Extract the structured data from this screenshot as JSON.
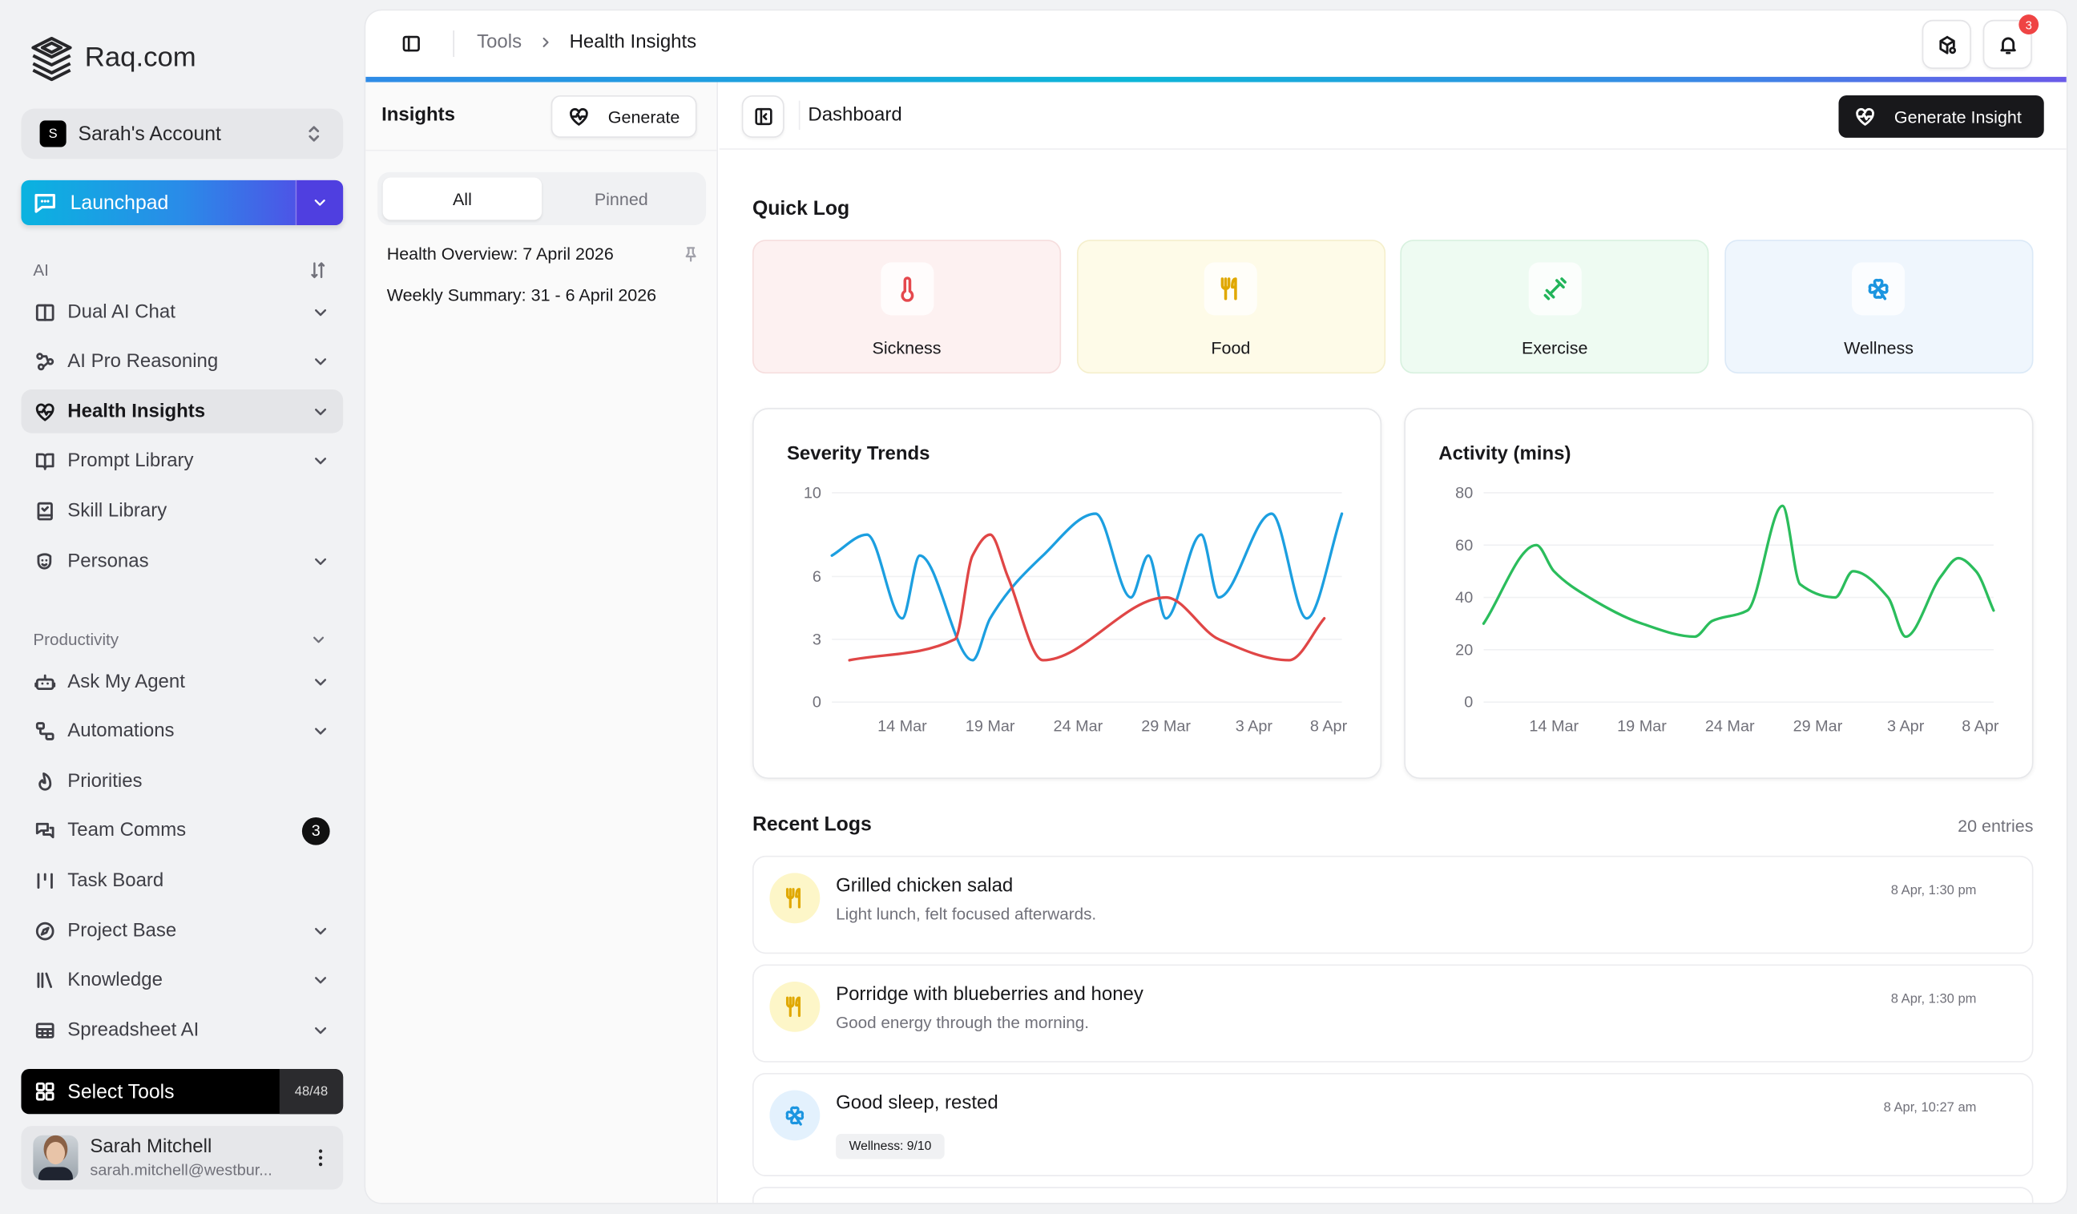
{
  "brand": {
    "name": "Raq.com"
  },
  "account": {
    "initial": "S",
    "name": "Sarah's Account"
  },
  "launchpad": {
    "label": "Launchpad"
  },
  "sidebar": {
    "ai_section": "AI",
    "ai_items": [
      {
        "label": "Dual AI Chat",
        "icon": "columns-icon",
        "expand": true
      },
      {
        "label": "AI Pro Reasoning",
        "icon": "workflow-icon",
        "expand": true
      },
      {
        "label": "Health Insights",
        "icon": "heart-pulse-icon",
        "expand": true,
        "active": true
      },
      {
        "label": "Prompt Library",
        "icon": "book-open-icon",
        "expand": true
      },
      {
        "label": "Skill Library",
        "icon": "book-check-icon",
        "expand": false
      },
      {
        "label": "Personas",
        "icon": "masks-icon",
        "expand": true
      }
    ],
    "productivity_section": "Productivity",
    "productivity_items": [
      {
        "label": "Ask My Agent",
        "icon": "bot-icon",
        "expand": true
      },
      {
        "label": "Automations",
        "icon": "flow-icon",
        "expand": true
      },
      {
        "label": "Priorities",
        "icon": "flame-icon",
        "expand": false
      },
      {
        "label": "Team Comms",
        "icon": "messages-icon",
        "badge": "3"
      },
      {
        "label": "Task Board",
        "icon": "kanban-icon",
        "expand": false
      },
      {
        "label": "Project Base",
        "icon": "compass-icon",
        "expand": true
      },
      {
        "label": "Knowledge",
        "icon": "library-icon",
        "expand": true
      },
      {
        "label": "Spreadsheet AI",
        "icon": "table-icon",
        "expand": true
      }
    ],
    "select_tools": {
      "label": "Select Tools",
      "count": "48/48"
    },
    "user": {
      "name": "Sarah Mitchell",
      "email": "sarah.mitchell@westbur..."
    }
  },
  "breadcrumb": {
    "parent": "Tools",
    "current": "Health Insights"
  },
  "header": {
    "notifications": "3"
  },
  "insights": {
    "title": "Insights",
    "generate_label": "Generate",
    "tabs": [
      "All",
      "Pinned"
    ],
    "items": [
      "Health Overview: 7 April 2026",
      "Weekly Summary: 31 - 6 April 2026"
    ]
  },
  "dashboard": {
    "title": "Dashboard",
    "generate_insight_label": "Generate Insight",
    "quick_log_title": "Quick Log",
    "quick_log": [
      {
        "label": "Sickness",
        "icon": "thermometer-icon",
        "color": "#e5484d",
        "bg": "#fdf1f1",
        "border": "#f6dede"
      },
      {
        "label": "Food",
        "icon": "utensils-icon",
        "color": "#e0a800",
        "bg": "#fefbe8",
        "border": "#f5efcc"
      },
      {
        "label": "Exercise",
        "icon": "dumbbell-icon",
        "color": "#22b45a",
        "bg": "#eefbf2",
        "border": "#d8f1df"
      },
      {
        "label": "Wellness",
        "icon": "clover-icon",
        "color": "#1b95e0",
        "bg": "#eff6fd",
        "border": "#dbe9f7"
      }
    ],
    "recent_title": "Recent Logs",
    "entries": "20 entries",
    "logs": [
      {
        "title": "Grilled chicken salad",
        "desc": "Light lunch, felt focused afterwards.",
        "time": "8 Apr, 1:30 pm",
        "kind": "food"
      },
      {
        "title": "Porridge with blueberries and honey",
        "desc": "Good energy through the morning.",
        "time": "8 Apr, 1:30 pm",
        "kind": "food"
      },
      {
        "title": "Good sleep, rested",
        "tag": "Wellness: 9/10",
        "time": "8 Apr, 10:27 am",
        "kind": "wellness"
      }
    ]
  },
  "chart_data": [
    {
      "type": "line",
      "title": "Severity Trends",
      "xlabel": "",
      "ylabel": "",
      "xlim": [
        "10 Mar",
        "8 Apr"
      ],
      "ylim": [
        0,
        10
      ],
      "yticks": [
        0,
        3,
        6,
        10
      ],
      "xticks": [
        "14 Mar",
        "19 Mar",
        "24 Mar",
        "29 Mar",
        "3 Apr",
        "8 Apr"
      ],
      "grid": true,
      "series": [
        {
          "color": "#1c9fe0",
          "points": [
            [
              "10 Mar",
              7
            ],
            [
              "12 Mar",
              8
            ],
            [
              "14 Mar",
              4
            ],
            [
              "15 Mar",
              7
            ],
            [
              "18 Mar",
              2
            ],
            [
              "19 Mar",
              4
            ],
            [
              "22 Mar",
              7
            ],
            [
              "25 Mar",
              9
            ],
            [
              "27 Mar",
              5
            ],
            [
              "28 Mar",
              7
            ],
            [
              "29 Mar",
              4
            ],
            [
              "31 Mar",
              8
            ],
            [
              "1 Apr",
              5
            ],
            [
              "4 Apr",
              9
            ],
            [
              "6 Apr",
              4
            ],
            [
              "8 Apr",
              9
            ]
          ]
        },
        {
          "color": "#e04646",
          "points": [
            [
              "11 Mar",
              2
            ],
            [
              "17 Mar",
              3
            ],
            [
              "18 Mar",
              7
            ],
            [
              "19 Mar",
              8
            ],
            [
              "20 Mar",
              6
            ],
            [
              "22 Mar",
              2
            ],
            [
              "29 Mar",
              5
            ],
            [
              "1 Apr",
              3
            ],
            [
              "5 Apr",
              2
            ],
            [
              "7 Apr",
              4
            ]
          ]
        }
      ]
    },
    {
      "type": "line",
      "title": "Activity (mins)",
      "xlabel": "",
      "ylabel": "",
      "xlim": [
        "10 Mar",
        "8 Apr"
      ],
      "ylim": [
        0,
        80
      ],
      "yticks": [
        0,
        20,
        40,
        60,
        80
      ],
      "xticks": [
        "14 Mar",
        "19 Mar",
        "24 Mar",
        "29 Mar",
        "3 Apr",
        "8 Apr"
      ],
      "grid": true,
      "series": [
        {
          "color": "#2bbd5c",
          "points": [
            [
              "10 Mar",
              30
            ],
            [
              "13 Mar",
              60
            ],
            [
              "14 Mar",
              50
            ],
            [
              "16 Mar",
              40
            ],
            [
              "19 Mar",
              30
            ],
            [
              "22 Mar",
              25
            ],
            [
              "23 Mar",
              31
            ],
            [
              "25 Mar",
              35
            ],
            [
              "27 Mar",
              75
            ],
            [
              "28 Mar",
              45
            ],
            [
              "30 Mar",
              40
            ],
            [
              "31 Mar",
              50
            ],
            [
              "2 Apr",
              40
            ],
            [
              "3 Apr",
              25
            ],
            [
              "5 Apr",
              48
            ],
            [
              "6 Apr",
              55
            ],
            [
              "7 Apr",
              50
            ],
            [
              "8 Apr",
              35
            ]
          ]
        }
      ]
    }
  ]
}
